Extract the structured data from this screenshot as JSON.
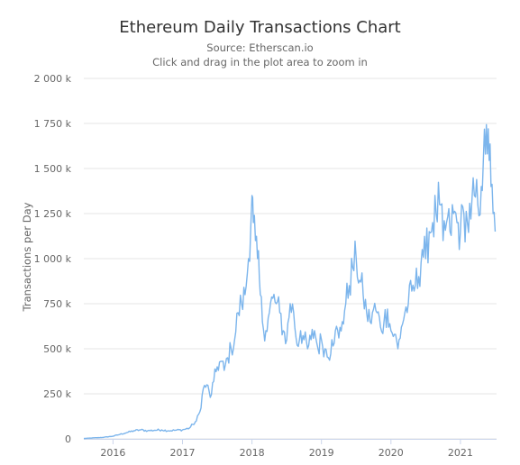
{
  "chart_data": {
    "type": "line",
    "title": "Ethereum Daily Transactions Chart",
    "subtitle": "Source: Etherscan.io",
    "subtitle2": "Click and drag in the plot area to zoom in",
    "xlabel": "",
    "ylabel": "Transactions per Day",
    "ylim": [
      0,
      2000000
    ],
    "y_ticks": [
      {
        "value": 0,
        "label": "0"
      },
      {
        "value": 250000,
        "label": "250 k"
      },
      {
        "value": 500000,
        "label": "500 k"
      },
      {
        "value": 750000,
        "label": "750 k"
      },
      {
        "value": 1000000,
        "label": "1 000 k"
      },
      {
        "value": 1250000,
        "label": "1 250 k"
      },
      {
        "value": 1500000,
        "label": "1 500 k"
      },
      {
        "value": 1750000,
        "label": "1 750 k"
      },
      {
        "value": 2000000,
        "label": "2 000 k"
      }
    ],
    "xlim": [
      2015.58,
      2021.52
    ],
    "x_ticks": [
      {
        "value": 2016,
        "label": "2016"
      },
      {
        "value": 2017,
        "label": "2017"
      },
      {
        "value": 2018,
        "label": "2018"
      },
      {
        "value": 2019,
        "label": "2019"
      },
      {
        "value": 2020,
        "label": "2020"
      },
      {
        "value": 2021,
        "label": "2021"
      }
    ],
    "grid": true,
    "line_color": "#7cb5ec",
    "series": [
      {
        "x": [
          2015.58,
          2015.7,
          2015.85,
          2016.0,
          2016.1,
          2016.2,
          2016.3,
          2016.4,
          2016.5,
          2016.6,
          2016.7,
          2016.8,
          2016.9,
          2017.0,
          2017.1,
          2017.15,
          2017.2,
          2017.25,
          2017.3,
          2017.35,
          2017.4,
          2017.45,
          2017.5,
          2017.55,
          2017.6,
          2017.65,
          2017.7,
          2017.75,
          2017.8,
          2017.85,
          2017.9,
          2017.95,
          2018.0,
          2018.02,
          2018.05,
          2018.08,
          2018.12,
          2018.15,
          2018.2,
          2018.25,
          2018.3,
          2018.35,
          2018.4,
          2018.45,
          2018.5,
          2018.55,
          2018.6,
          2018.65,
          2018.7,
          2018.75,
          2018.8,
          2018.85,
          2018.9,
          2018.95,
          2019.0,
          2019.05,
          2019.1,
          2019.15,
          2019.2,
          2019.25,
          2019.3,
          2019.35,
          2019.4,
          2019.45,
          2019.5,
          2019.55,
          2019.6,
          2019.65,
          2019.7,
          2019.75,
          2019.8,
          2019.85,
          2019.9,
          2019.95,
          2020.0,
          2020.05,
          2020.1,
          2020.15,
          2020.2,
          2020.25,
          2020.3,
          2020.35,
          2020.4,
          2020.45,
          2020.5,
          2020.55,
          2020.6,
          2020.65,
          2020.7,
          2020.75,
          2020.8,
          2020.85,
          2020.9,
          2020.95,
          2021.0,
          2021.05,
          2021.1,
          2021.15,
          2021.2,
          2021.25,
          2021.3,
          2021.33,
          2021.36,
          2021.4,
          2021.44,
          2021.47,
          2021.5
        ],
        "values": [
          2000,
          5000,
          8000,
          15000,
          25000,
          35000,
          45000,
          50000,
          45000,
          48000,
          50000,
          45000,
          48000,
          50000,
          60000,
          80000,
          100000,
          150000,
          280000,
          300000,
          230000,
          320000,
          400000,
          430000,
          380000,
          450000,
          500000,
          550000,
          700000,
          750000,
          800000,
          1000000,
          1350000,
          1200000,
          1100000,
          1000000,
          800000,
          650000,
          600000,
          700000,
          780000,
          750000,
          700000,
          600000,
          550000,
          750000,
          700000,
          520000,
          600000,
          550000,
          500000,
          550000,
          600000,
          500000,
          550000,
          500000,
          450000,
          550000,
          600000,
          560000,
          650000,
          750000,
          850000,
          950000,
          1000000,
          880000,
          800000,
          700000,
          650000,
          720000,
          700000,
          620000,
          650000,
          720000,
          600000,
          580000,
          500000,
          620000,
          700000,
          750000,
          820000,
          850000,
          900000,
          1050000,
          1000000,
          1150000,
          1200000,
          1250000,
          1300000,
          1100000,
          1200000,
          1150000,
          1250000,
          1200000,
          1150000,
          1250000,
          1200000,
          1220000,
          1350000,
          1300000,
          1400000,
          1550000,
          1580000,
          1720000,
          1400000,
          1250000,
          1150000
        ]
      }
    ]
  }
}
